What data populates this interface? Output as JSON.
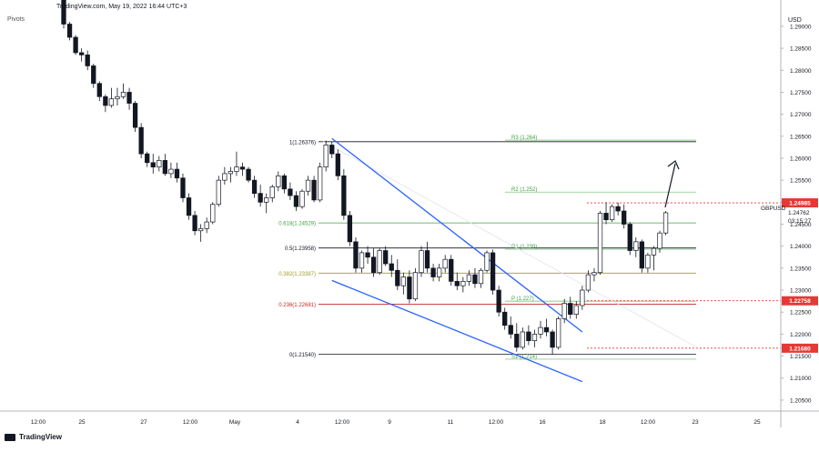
{
  "header": {
    "source_line": "TradingView.com, May 19, 2022 16:44 UTC+3",
    "indicator": "Pivots"
  },
  "brand": "TradingView",
  "chart_data": {
    "type": "candlestick",
    "symbol": "GBPUSD",
    "currency": "USD",
    "ylim": [
      1.2025,
      1.2935
    ],
    "y_ticks": [
      1.205,
      1.21,
      1.215,
      1.22,
      1.225,
      1.23,
      1.235,
      1.24,
      1.245,
      1.25,
      1.255,
      1.26,
      1.265,
      1.27,
      1.275,
      1.28,
      1.285,
      1.29
    ],
    "x_ticks": [
      "12:00",
      "25",
      "27",
      "12:00",
      "May",
      "4",
      "12:00",
      "9",
      "11",
      "12:00",
      "16",
      "18",
      "12:00",
      "23",
      "25"
    ],
    "price_tags": [
      {
        "label": "1.24985",
        "value": 1.24985,
        "color": "#e53935"
      },
      {
        "label": "1.22758",
        "value": 1.22758,
        "color": "#e53935"
      },
      {
        "label": "1.21680",
        "value": 1.2168,
        "color": "#e53935"
      }
    ],
    "last_price": {
      "label": "1.24762",
      "countdown": "03:15:27",
      "symbol": "GBPUSD"
    },
    "fib_levels": [
      {
        "label": "1(1.26376)",
        "value": 1.26376,
        "color": "#131722"
      },
      {
        "label": "0.618(1.24529)",
        "value": 1.24529,
        "color": "#43a047"
      },
      {
        "label": "0.5(1.23958)",
        "value": 1.23958,
        "color": "#131722"
      },
      {
        "label": "0.382(1.23387)",
        "value": 1.23387,
        "color": "#9e9d24"
      },
      {
        "label": "0.236(1.22681)",
        "value": 1.22681,
        "color": "#c62828"
      },
      {
        "label": "0(1.21540)",
        "value": 1.2154,
        "color": "#131722"
      }
    ],
    "pivots": [
      {
        "label": "R3 (1.264)",
        "value": 1.2641
      },
      {
        "label": "R2 (1.252)",
        "value": 1.2523
      },
      {
        "label": "R1 (1.239)",
        "value": 1.2393
      },
      {
        "label": "P (1.227)",
        "value": 1.2275
      },
      {
        "label": "S1 (1.214)",
        "value": 1.2143
      }
    ],
    "ohlc": [
      [
        1.296,
        1.296,
        1.2895,
        1.2905
      ],
      [
        1.2905,
        1.291,
        1.2868,
        1.2875
      ],
      [
        1.2875,
        1.288,
        1.2835,
        1.284
      ],
      [
        1.284,
        1.285,
        1.282,
        1.2835
      ],
      [
        1.2835,
        1.2845,
        1.28,
        1.281
      ],
      [
        1.281,
        1.2815,
        1.276,
        1.277
      ],
      [
        1.277,
        1.2775,
        1.273,
        1.274
      ],
      [
        1.274,
        1.2745,
        1.2705,
        1.272
      ],
      [
        1.272,
        1.276,
        1.2715,
        1.2735
      ],
      [
        1.2735,
        1.276,
        1.272,
        1.274
      ],
      [
        1.274,
        1.277,
        1.2735,
        1.275
      ],
      [
        1.275,
        1.276,
        1.271,
        1.2725
      ],
      [
        1.2725,
        1.273,
        1.266,
        1.267
      ],
      [
        1.267,
        1.268,
        1.26,
        1.261
      ],
      [
        1.261,
        1.2615,
        1.258,
        1.259
      ],
      [
        1.259,
        1.261,
        1.2565,
        1.258
      ],
      [
        1.258,
        1.2605,
        1.257,
        1.2595
      ],
      [
        1.2595,
        1.261,
        1.256,
        1.2565
      ],
      [
        1.2565,
        1.259,
        1.2555,
        1.2575
      ],
      [
        1.2575,
        1.259,
        1.2545,
        1.2555
      ],
      [
        1.2555,
        1.2565,
        1.25,
        1.251
      ],
      [
        1.251,
        1.252,
        1.246,
        1.247
      ],
      [
        1.247,
        1.248,
        1.2425,
        1.2435
      ],
      [
        1.2435,
        1.245,
        1.241,
        1.244
      ],
      [
        1.244,
        1.2465,
        1.243,
        1.2455
      ],
      [
        1.2455,
        1.25,
        1.245,
        1.2495
      ],
      [
        1.2495,
        1.256,
        1.249,
        1.255
      ],
      [
        1.255,
        1.258,
        1.254,
        1.2565
      ],
      [
        1.2565,
        1.258,
        1.2545,
        1.257
      ],
      [
        1.257,
        1.2615,
        1.256,
        1.258
      ],
      [
        1.258,
        1.259,
        1.256,
        1.2575
      ],
      [
        1.2575,
        1.258,
        1.2545,
        1.255
      ],
      [
        1.255,
        1.256,
        1.251,
        1.252
      ],
      [
        1.252,
        1.254,
        1.249,
        1.25
      ],
      [
        1.25,
        1.252,
        1.2475,
        1.251
      ],
      [
        1.251,
        1.254,
        1.25,
        1.2535
      ],
      [
        1.2535,
        1.257,
        1.2525,
        1.256
      ],
      [
        1.256,
        1.2565,
        1.252,
        1.253
      ],
      [
        1.253,
        1.2545,
        1.2505,
        1.2515
      ],
      [
        1.2515,
        1.2525,
        1.248,
        1.249
      ],
      [
        1.249,
        1.253,
        1.2485,
        1.2525
      ],
      [
        1.2525,
        1.256,
        1.2515,
        1.255
      ],
      [
        1.255,
        1.256,
        1.25,
        1.2505
      ],
      [
        1.2505,
        1.259,
        1.25,
        1.258
      ],
      [
        1.258,
        1.264,
        1.257,
        1.263
      ],
      [
        1.263,
        1.2638,
        1.26,
        1.261
      ],
      [
        1.261,
        1.262,
        1.255,
        1.256
      ],
      [
        1.256,
        1.2575,
        1.246,
        1.247
      ],
      [
        1.247,
        1.248,
        1.24,
        1.241
      ],
      [
        1.241,
        1.242,
        1.234,
        1.235
      ],
      [
        1.235,
        1.239,
        1.234,
        1.2385
      ],
      [
        1.2385,
        1.24,
        1.236,
        1.2375
      ],
      [
        1.2375,
        1.2395,
        1.233,
        1.234
      ],
      [
        1.234,
        1.2395,
        1.2335,
        1.239
      ],
      [
        1.239,
        1.24,
        1.2355,
        1.236
      ],
      [
        1.236,
        1.238,
        1.233,
        1.2345
      ],
      [
        1.2345,
        1.237,
        1.23,
        1.231
      ],
      [
        1.231,
        1.234,
        1.229,
        1.233
      ],
      [
        1.233,
        1.2345,
        1.227,
        1.228
      ],
      [
        1.228,
        1.235,
        1.2275,
        1.234
      ],
      [
        1.234,
        1.24,
        1.233,
        1.239
      ],
      [
        1.239,
        1.241,
        1.234,
        1.235
      ],
      [
        1.235,
        1.236,
        1.232,
        1.233
      ],
      [
        1.233,
        1.236,
        1.232,
        1.235
      ],
      [
        1.235,
        1.238,
        1.234,
        1.237
      ],
      [
        1.237,
        1.238,
        1.231,
        1.232
      ],
      [
        1.232,
        1.234,
        1.23,
        1.231
      ],
      [
        1.231,
        1.233,
        1.2295,
        1.232
      ],
      [
        1.232,
        1.2345,
        1.231,
        1.2335
      ],
      [
        1.2335,
        1.235,
        1.2305,
        1.2315
      ],
      [
        1.2315,
        1.235,
        1.2305,
        1.2345
      ],
      [
        1.2345,
        1.239,
        1.234,
        1.2385
      ],
      [
        1.2385,
        1.2392,
        1.229,
        1.23
      ],
      [
        1.23,
        1.231,
        1.224,
        1.225
      ],
      [
        1.225,
        1.226,
        1.221,
        1.222
      ],
      [
        1.222,
        1.224,
        1.219,
        1.22
      ],
      [
        1.22,
        1.2225,
        1.216,
        1.217
      ],
      [
        1.217,
        1.2215,
        1.2165,
        1.2205
      ],
      [
        1.2205,
        1.222,
        1.2175,
        1.2185
      ],
      [
        1.2185,
        1.221,
        1.217,
        1.22
      ],
      [
        1.22,
        1.223,
        1.219,
        1.2215
      ],
      [
        1.2215,
        1.2235,
        1.2195,
        1.2205
      ],
      [
        1.2205,
        1.221,
        1.2154,
        1.217
      ],
      [
        1.217,
        1.224,
        1.2165,
        1.2235
      ],
      [
        1.2235,
        1.228,
        1.2225,
        1.227
      ],
      [
        1.227,
        1.2285,
        1.2235,
        1.2245
      ],
      [
        1.2245,
        1.2275,
        1.2235,
        1.2265
      ],
      [
        1.2265,
        1.231,
        1.2255,
        1.23
      ],
      [
        1.23,
        1.2345,
        1.2295,
        1.2335
      ],
      [
        1.2335,
        1.235,
        1.232,
        1.234
      ],
      [
        1.234,
        1.248,
        1.2335,
        1.2475
      ],
      [
        1.2475,
        1.25,
        1.245,
        1.246
      ],
      [
        1.246,
        1.2495,
        1.2455,
        1.249
      ],
      [
        1.249,
        1.2499,
        1.247,
        1.248
      ],
      [
        1.248,
        1.2495,
        1.244,
        1.245
      ],
      [
        1.245,
        1.2455,
        1.238,
        1.239
      ],
      [
        1.239,
        1.242,
        1.2375,
        1.241
      ],
      [
        1.241,
        1.2415,
        1.234,
        1.235
      ],
      [
        1.235,
        1.2385,
        1.234,
        1.238
      ],
      [
        1.238,
        1.24,
        1.2345,
        1.2395
      ],
      [
        1.2395,
        1.2435,
        1.2385,
        1.243
      ],
      [
        1.243,
        1.248,
        1.2425,
        1.2476
      ]
    ],
    "trendlines": [
      {
        "name": "upper-wedge",
        "from": [
          45,
          1.2645
        ],
        "to": [
          87,
          1.2205
        ]
      },
      {
        "name": "lower-wedge",
        "from": [
          45,
          1.2322
        ],
        "to": [
          87,
          1.2092
        ]
      }
    ]
  }
}
